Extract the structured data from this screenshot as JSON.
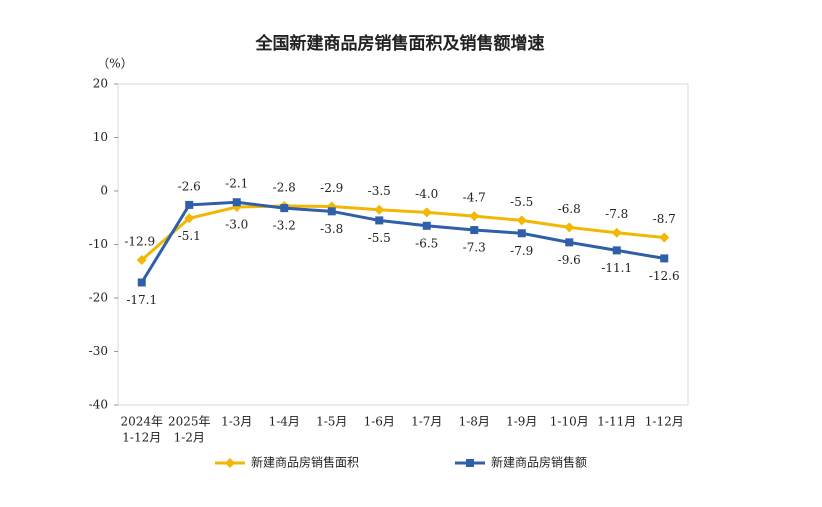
{
  "chart_data": {
    "type": "line",
    "title": "全国新建商品房销售面积及销售额增速",
    "unit_label": "（%）",
    "categories": [
      "1-12月",
      "1-2月",
      "1-3月",
      "1-4月",
      "1-5月",
      "1-6月",
      "1-7月",
      "1-8月",
      "1-9月",
      "1-10月",
      "1-11月",
      "1-12月"
    ],
    "category_years": [
      "2024年",
      "2025年",
      null,
      null,
      null,
      null,
      null,
      null,
      null,
      null,
      null,
      null
    ],
    "series": [
      {
        "name": "新建商品房销售面积",
        "color": "#f2b705",
        "marker": "diamond",
        "values": [
          -12.9,
          -5.1,
          -3.0,
          -2.8,
          -2.9,
          -3.5,
          -4.0,
          -4.7,
          -5.5,
          -6.8,
          -7.8,
          -8.7
        ],
        "value_labels": [
          "-12.9",
          "-5.1",
          "-3.0",
          "-2.8",
          "-2.9",
          "-3.5",
          "-4.0",
          "-4.7",
          "-5.5",
          "-6.8",
          "-7.8",
          "-8.7"
        ]
      },
      {
        "name": "新建商品房销售额",
        "color": "#2e5fa8",
        "marker": "square",
        "values": [
          -17.1,
          -2.6,
          -2.1,
          -3.2,
          -3.8,
          -5.5,
          -6.5,
          -7.3,
          -7.9,
          -9.6,
          -11.1,
          -12.6
        ],
        "value_labels": [
          "-17.1",
          "-2.6",
          "-2.1",
          "-3.2",
          "-3.8",
          "-5.5",
          "-6.5",
          "-7.3",
          "-7.9",
          "-9.6",
          "-11.1",
          "-12.6"
        ]
      }
    ],
    "ylim": [
      -40,
      20
    ],
    "yticks": [
      -40,
      -30,
      -20,
      -10,
      0,
      10,
      20
    ],
    "grid": false
  }
}
